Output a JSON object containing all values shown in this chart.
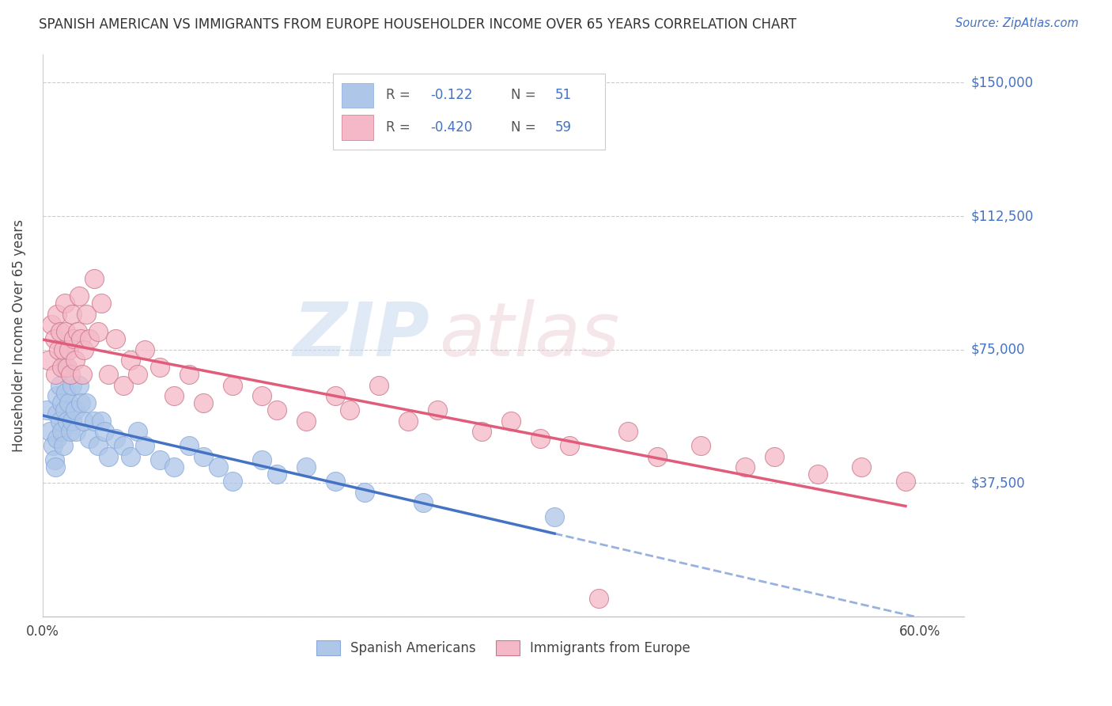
{
  "title": "SPANISH AMERICAN VS IMMIGRANTS FROM EUROPE HOUSEHOLDER INCOME OVER 65 YEARS CORRELATION CHART",
  "source": "Source: ZipAtlas.com",
  "ylabel": "Householder Income Over 65 years",
  "yticks": [
    0,
    37500,
    75000,
    112500,
    150000
  ],
  "ytick_labels": [
    "",
    "$37,500",
    "$75,000",
    "$112,500",
    "$150,000"
  ],
  "xlim": [
    0.0,
    0.63
  ],
  "ylim": [
    0,
    158000
  ],
  "line1_color": "#4472c4",
  "line2_color": "#e05c7a",
  "scatter1_color": "#aec6e8",
  "scatter2_color": "#f4b8c8",
  "R1": -0.122,
  "N1": 51,
  "R2": -0.42,
  "N2": 59,
  "legend_label1": "Spanish Americans",
  "legend_label2": "Immigrants from Europe",
  "spanish_x": [
    0.003,
    0.005,
    0.007,
    0.008,
    0.009,
    0.01,
    0.01,
    0.01,
    0.012,
    0.012,
    0.013,
    0.013,
    0.014,
    0.015,
    0.015,
    0.016,
    0.017,
    0.018,
    0.019,
    0.02,
    0.02,
    0.022,
    0.023,
    0.025,
    0.026,
    0.028,
    0.03,
    0.032,
    0.035,
    0.038,
    0.04,
    0.042,
    0.045,
    0.05,
    0.055,
    0.06,
    0.065,
    0.07,
    0.08,
    0.09,
    0.1,
    0.11,
    0.12,
    0.13,
    0.15,
    0.16,
    0.18,
    0.2,
    0.22,
    0.26,
    0.35
  ],
  "spanish_y": [
    58000,
    52000,
    48000,
    44000,
    42000,
    57000,
    62000,
    50000,
    65000,
    55000,
    60000,
    52000,
    48000,
    70000,
    58000,
    63000,
    55000,
    60000,
    52000,
    65000,
    55000,
    58000,
    52000,
    65000,
    60000,
    55000,
    60000,
    50000,
    55000,
    48000,
    55000,
    52000,
    45000,
    50000,
    48000,
    45000,
    52000,
    48000,
    44000,
    42000,
    48000,
    45000,
    42000,
    38000,
    44000,
    40000,
    42000,
    38000,
    35000,
    32000,
    28000
  ],
  "europe_x": [
    0.004,
    0.006,
    0.008,
    0.009,
    0.01,
    0.011,
    0.012,
    0.013,
    0.014,
    0.015,
    0.016,
    0.017,
    0.018,
    0.019,
    0.02,
    0.021,
    0.022,
    0.024,
    0.025,
    0.026,
    0.027,
    0.028,
    0.03,
    0.032,
    0.035,
    0.038,
    0.04,
    0.045,
    0.05,
    0.055,
    0.06,
    0.065,
    0.07,
    0.08,
    0.09,
    0.1,
    0.11,
    0.13,
    0.15,
    0.16,
    0.18,
    0.2,
    0.21,
    0.23,
    0.25,
    0.27,
    0.3,
    0.32,
    0.34,
    0.36,
    0.38,
    0.4,
    0.42,
    0.45,
    0.48,
    0.5,
    0.53,
    0.56,
    0.59
  ],
  "europe_y": [
    72000,
    82000,
    78000,
    68000,
    85000,
    75000,
    80000,
    70000,
    75000,
    88000,
    80000,
    70000,
    75000,
    68000,
    85000,
    78000,
    72000,
    80000,
    90000,
    78000,
    68000,
    75000,
    85000,
    78000,
    95000,
    80000,
    88000,
    68000,
    78000,
    65000,
    72000,
    68000,
    75000,
    70000,
    62000,
    68000,
    60000,
    65000,
    62000,
    58000,
    55000,
    62000,
    58000,
    65000,
    55000,
    58000,
    52000,
    55000,
    50000,
    48000,
    5000,
    52000,
    45000,
    48000,
    42000,
    45000,
    40000,
    42000,
    38000
  ]
}
